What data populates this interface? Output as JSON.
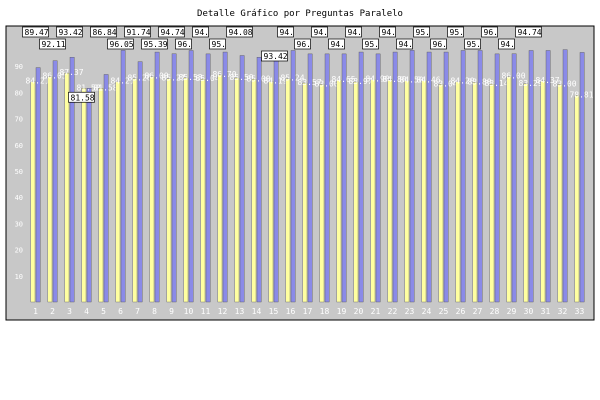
{
  "chart_data": {
    "type": "bar",
    "title": "Detalle Gráfico por Preguntas Paralelo",
    "xlabel": "",
    "ylabel": "",
    "ylim": [
      0,
      100
    ],
    "yticks": [
      10,
      20,
      30,
      40,
      50,
      60,
      70,
      80,
      90
    ],
    "categories": [
      "1",
      "2",
      "3",
      "4",
      "5",
      "6",
      "7",
      "8",
      "9",
      "10",
      "11",
      "12",
      "13",
      "14",
      "15",
      "16",
      "17",
      "18",
      "19",
      "20",
      "21",
      "22",
      "23",
      "24",
      "25",
      "26",
      "27",
      "28",
      "29",
      "30",
      "31",
      "32",
      "33"
    ],
    "series": [
      {
        "name": "",
        "color": "#8a8ae8",
        "values": [
          89.47,
          92.11,
          93.42,
          81.58,
          86.84,
          96.05,
          91.74,
          95.39,
          94.74,
          96.0,
          94.7,
          95.4,
          94.08,
          93.42,
          94.7,
          96.0,
          94.7,
          94.7,
          94.7,
          95.4,
          94.7,
          95.4,
          96.05,
          95.4,
          95.4,
          96.0,
          96.0,
          94.7,
          94.74,
          96.0,
          96.0,
          96.32,
          95.26
        ]
      },
      {
        "name": "",
        "color": "#ffffa0",
        "values": [
          84.21,
          86.05,
          87.37,
          81.58,
          81.58,
          84.21,
          85.26,
          86.0,
          85.21,
          85.53,
          85.04,
          86.7,
          85.5,
          85.0,
          84.19,
          85.24,
          83.57,
          83.0,
          84.65,
          83.97,
          84.9,
          84.8,
          84.5,
          84.46,
          83.04,
          84.2,
          83.8,
          83.14,
          86.0,
          83.29,
          84.37,
          83.0,
          78.81
        ]
      }
    ],
    "top_boxes": [
      {
        "index": 1,
        "text": "89.47"
      },
      {
        "index": 2,
        "text": "92.11"
      },
      {
        "index": 3,
        "text": "93.42"
      },
      {
        "index": 4,
        "text": "81.58"
      },
      {
        "index": 5,
        "text": "86.84"
      },
      {
        "index": 6,
        "text": "96.05"
      },
      {
        "index": 7,
        "text": "91.74"
      },
      {
        "index": 8,
        "text": "95.39"
      },
      {
        "index": 9,
        "text": "94.74"
      },
      {
        "index": 10,
        "text": "96."
      },
      {
        "index": 11,
        "text": "94."
      },
      {
        "index": 12,
        "text": "95."
      },
      {
        "index": 13,
        "text": "94.08"
      },
      {
        "index": 15,
        "text": "93.42"
      },
      {
        "index": 16,
        "text": "94."
      },
      {
        "index": 17,
        "text": "96."
      },
      {
        "index": 18,
        "text": "94."
      },
      {
        "index": 19,
        "text": "94."
      },
      {
        "index": 20,
        "text": "94."
      },
      {
        "index": 21,
        "text": "95."
      },
      {
        "index": 22,
        "text": "94."
      },
      {
        "index": 23,
        "text": "94."
      },
      {
        "index": 24,
        "text": "95."
      },
      {
        "index": 25,
        "text": "96."
      },
      {
        "index": 26,
        "text": "95."
      },
      {
        "index": 27,
        "text": "95."
      },
      {
        "index": 28,
        "text": "96."
      },
      {
        "index": 29,
        "text": "94."
      },
      {
        "index": 30,
        "text": "94.74"
      }
    ],
    "grid": false,
    "legend": "none",
    "background": "#c8c8c8"
  }
}
